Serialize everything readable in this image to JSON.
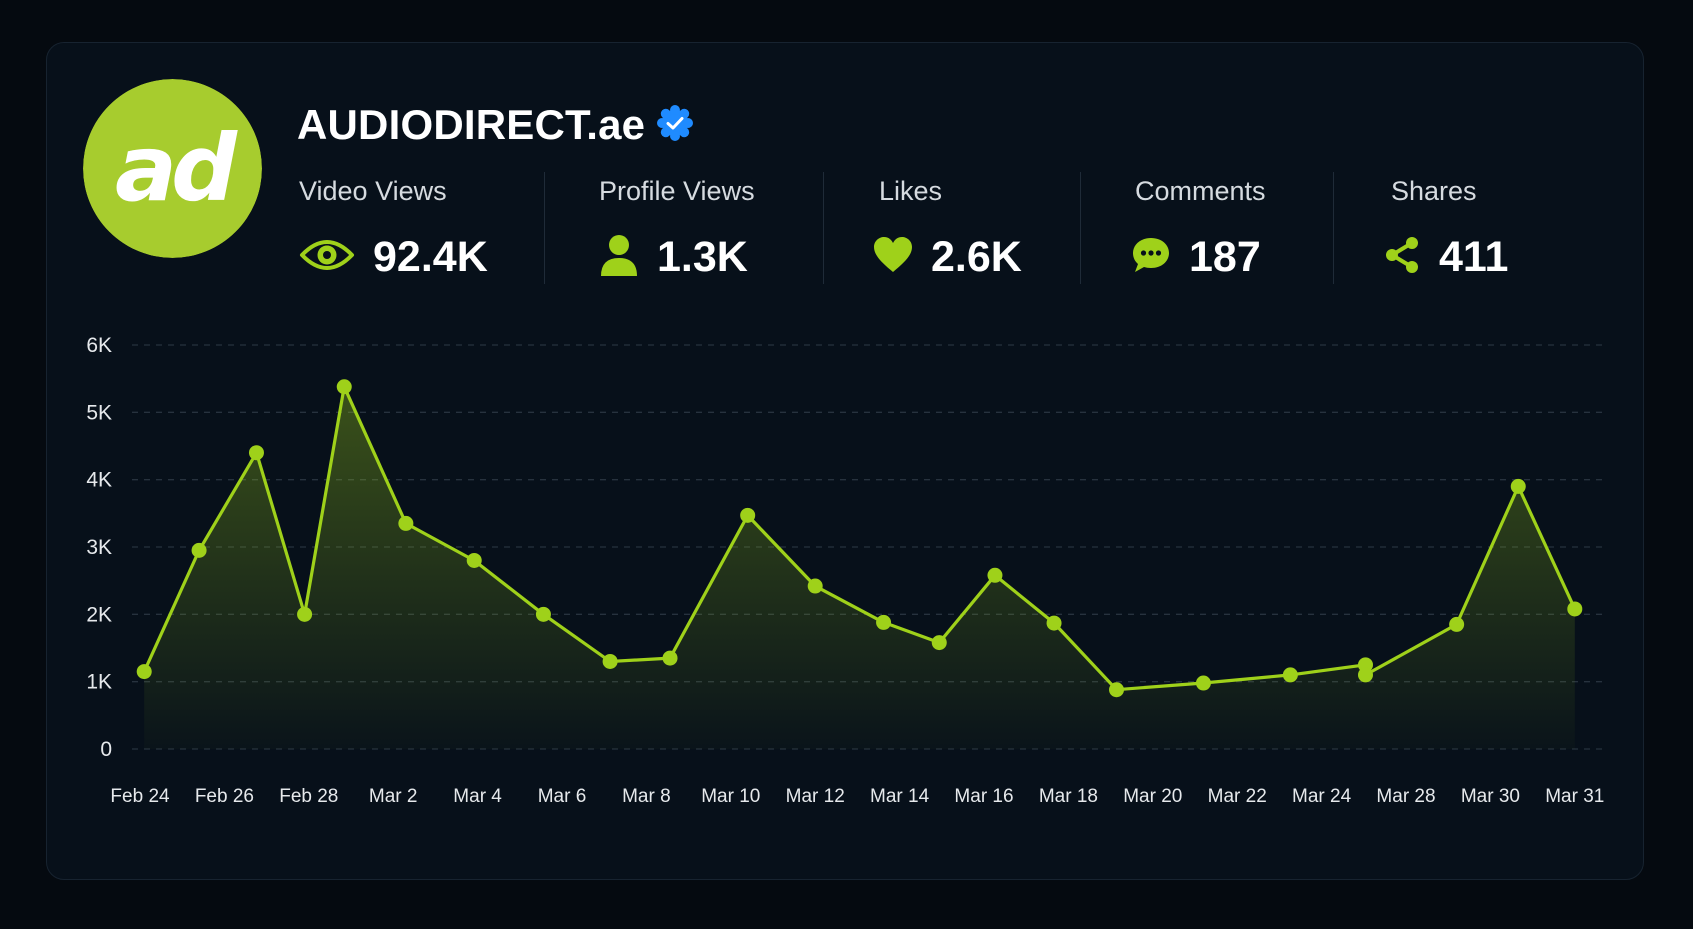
{
  "profile": {
    "name": "AUDIODIRECT.ae",
    "logo_text": "ad",
    "verified": true
  },
  "colors": {
    "accent": "#9fd11a",
    "logo_bg": "#a7cc2e",
    "verified_blue": "#1f8bff",
    "background": "#050a10",
    "card": "#07101a"
  },
  "stats": [
    {
      "label": "Video Views",
      "value": "92.4K",
      "icon": "eye-icon"
    },
    {
      "label": "Profile Views",
      "value": "1.3K",
      "icon": "user-icon"
    },
    {
      "label": "Likes",
      "value": "2.6K",
      "icon": "heart-icon"
    },
    {
      "label": "Comments",
      "value": "187",
      "icon": "comment-icon"
    },
    {
      "label": "Shares",
      "value": "411",
      "icon": "share-icon"
    }
  ],
  "chart_data": {
    "type": "area",
    "title": "",
    "xlabel": "",
    "ylabel": "",
    "ylim": [
      0,
      6000
    ],
    "y_ticks": [
      0,
      1000,
      2000,
      3000,
      4000,
      5000,
      6000
    ],
    "y_tick_labels": [
      "0",
      "1K",
      "2K",
      "3K",
      "4K",
      "5K",
      "6K"
    ],
    "x_tick_labels": [
      "Feb 24",
      "Feb 26",
      "Feb 28",
      "Mar 2",
      "Mar 4",
      "Mar 6",
      "Mar 8",
      "Mar 10",
      "Mar 12",
      "Mar 14",
      "Mar 16",
      "Mar 18",
      "Mar 20",
      "Mar 22",
      "Mar 24",
      "Mar 28",
      "Mar 30",
      "Mar 31"
    ],
    "grid": true,
    "legend": "none",
    "series": [
      {
        "x": [
          0.05,
          0.7,
          1.38,
          1.95,
          2.42,
          3.15,
          3.96,
          4.78,
          5.57,
          6.28,
          7.2,
          8.0,
          8.81,
          9.47,
          10.13,
          10.83,
          11.57,
          12.6,
          13.63,
          14.52,
          14.52,
          15.6,
          16.33,
          17.0
        ],
        "y": [
          1150,
          2950,
          4400,
          2000,
          5380,
          3350,
          2800,
          2000,
          1300,
          1350,
          3470,
          2420,
          1880,
          1580,
          2580,
          1870,
          880,
          980,
          1100,
          1250,
          1100,
          1850,
          3900,
          2080
        ]
      }
    ]
  }
}
